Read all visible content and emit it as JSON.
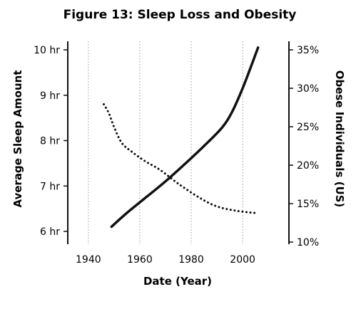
{
  "chart_data": {
    "type": "line",
    "title": "Figure 13: Sleep Loss and Obesity",
    "xlabel": "Date (Year)",
    "ylabel_left": "Average Sleep Amount",
    "ylabel_right": "Obese Individuals (US)",
    "xlim": [
      1932,
      2018
    ],
    "ylim_left": [
      5.7,
      10.1
    ],
    "ylim_right": [
      10,
      35.5
    ],
    "grid": "vertical dotted",
    "x_ticks": [
      {
        "value": 1940,
        "label": "1940"
      },
      {
        "value": 1960,
        "label": "1960"
      },
      {
        "value": 1980,
        "label": "1980"
      },
      {
        "value": 2000,
        "label": "2000"
      }
    ],
    "left_ticks": [
      {
        "value": 6,
        "label": "6 hr"
      },
      {
        "value": 7,
        "label": "7 hr"
      },
      {
        "value": 8,
        "label": "8 hr"
      },
      {
        "value": 9,
        "label": "9 hr"
      },
      {
        "value": 10,
        "label": "10 hr"
      }
    ],
    "right_ticks": [
      {
        "value": 10,
        "label": "10%"
      },
      {
        "value": 15,
        "label": "15%"
      },
      {
        "value": 20,
        "label": "20%"
      },
      {
        "value": 25,
        "label": "25%"
      },
      {
        "value": 30,
        "label": "30%"
      },
      {
        "value": 35,
        "label": "35%"
      }
    ],
    "series": [
      {
        "axis": "left",
        "style": "dotted",
        "x": [
          1946,
          1948,
          1950,
          1953,
          1957,
          1962,
          1968,
          1975,
          1983,
          1990,
          1998,
          2006
        ],
        "y": [
          8.8,
          8.6,
          8.3,
          7.95,
          7.75,
          7.55,
          7.35,
          7.05,
          6.75,
          6.55,
          6.45,
          6.4
        ]
      },
      {
        "axis": "right",
        "style": "solid",
        "x": [
          1949,
          1955,
          1962,
          1970,
          1978,
          1985,
          1992,
          1996,
          2000,
          2003,
          2006
        ],
        "y": [
          12,
          13.8,
          15.7,
          17.9,
          20.3,
          22.5,
          24.9,
          27,
          30,
          32.6,
          35.3
        ]
      }
    ]
  }
}
